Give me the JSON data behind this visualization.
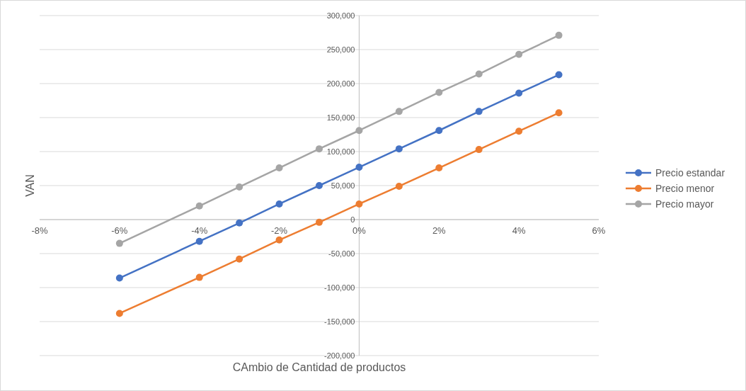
{
  "chart_data": {
    "type": "line",
    "xlabel": "CAmbio de Cantidad de productos",
    "ylabel": "VAN",
    "x": [
      -6,
      -4,
      -3,
      -2,
      -1,
      0,
      1,
      2,
      3,
      4,
      5
    ],
    "series": [
      {
        "name": "Precio estandar",
        "color": "#4472c4",
        "values": [
          -86000,
          -32000,
          -5000,
          23000,
          50000,
          77000,
          104000,
          131000,
          159000,
          186000,
          213000
        ]
      },
      {
        "name": "Precio menor",
        "color": "#ed7d31",
        "values": [
          -138000,
          -85000,
          -58000,
          -30000,
          -4000,
          23000,
          49000,
          76000,
          103000,
          130000,
          157000
        ]
      },
      {
        "name": "Precio mayor",
        "color": "#a5a5a5",
        "values": [
          -35000,
          20000,
          48000,
          76000,
          104000,
          131000,
          159000,
          187000,
          214000,
          243000,
          271000
        ]
      }
    ],
    "xlim": [
      -8,
      6
    ],
    "xticks": [
      {
        "value": -8,
        "label": "-8%"
      },
      {
        "value": -6,
        "label": "-6%"
      },
      {
        "value": -4,
        "label": "-4%"
      },
      {
        "value": -2,
        "label": "-2%"
      },
      {
        "value": 0,
        "label": "0%"
      },
      {
        "value": 2,
        "label": "2%"
      },
      {
        "value": 4,
        "label": "4%"
      },
      {
        "value": 6,
        "label": "6%"
      }
    ],
    "ylim": [
      -200000,
      300000
    ],
    "yticks": [
      {
        "value": -200000,
        "label": "-200,000"
      },
      {
        "value": -150000,
        "label": "-150,000"
      },
      {
        "value": -100000,
        "label": "-100,000"
      },
      {
        "value": -50000,
        "label": "-50,000"
      },
      0,
      {
        "value": 50000,
        "label": "50,000"
      },
      {
        "value": 100000,
        "label": "100,000"
      },
      {
        "value": 150000,
        "label": "150,000"
      },
      {
        "value": 200000,
        "label": "200,000"
      },
      {
        "value": 250000,
        "label": "250,000"
      },
      {
        "value": 300000,
        "label": "300,000"
      }
    ],
    "grid": "y",
    "legend": "right",
    "marker": "circle",
    "line_style": "solid"
  }
}
